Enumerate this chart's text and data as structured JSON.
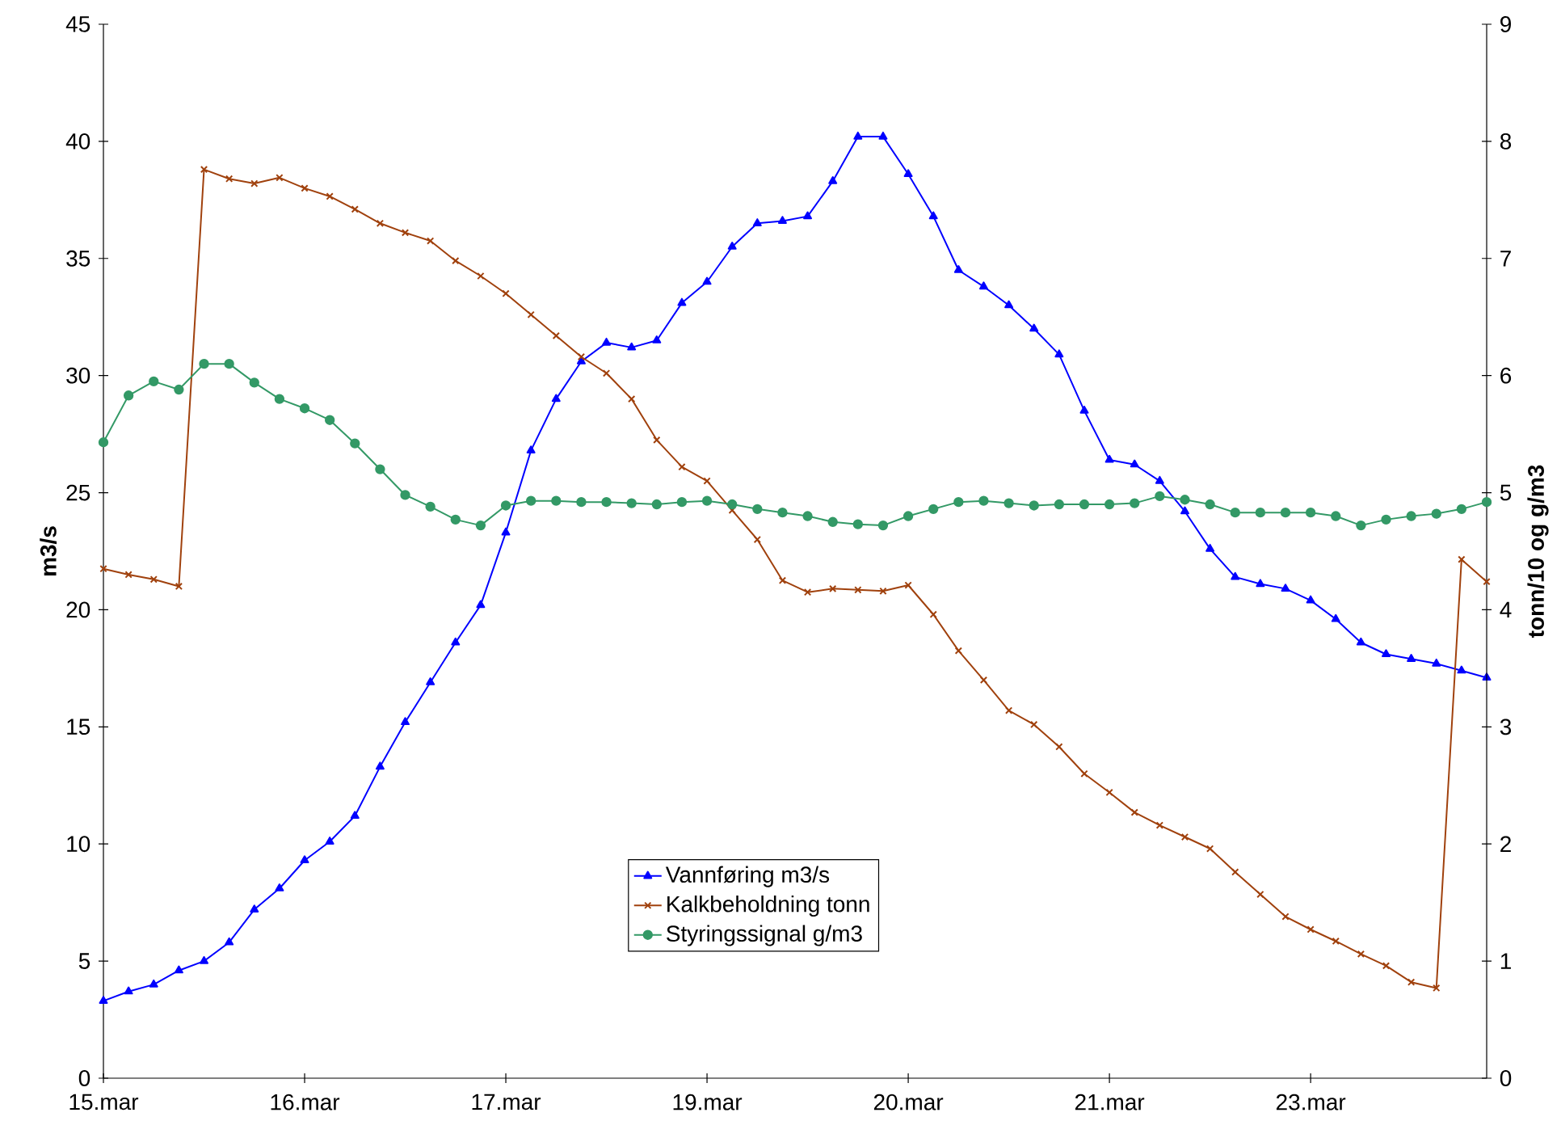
{
  "chart_data": {
    "type": "line",
    "ylabel": "m3/s",
    "y2label": "tonn/10 og g/m3",
    "categories": [
      "15.mar",
      null,
      null,
      null,
      null,
      null,
      null,
      null,
      "16.mar",
      null,
      null,
      null,
      null,
      null,
      null,
      null,
      "17.mar",
      null,
      null,
      null,
      null,
      null,
      null,
      null,
      "19.mar",
      null,
      null,
      null,
      null,
      null,
      null,
      null,
      "20.mar",
      null,
      null,
      null,
      null,
      null,
      null,
      null,
      "21.mar",
      null,
      null,
      null,
      null,
      null,
      null,
      null,
      "23.mar",
      null,
      null,
      null,
      null,
      null,
      null,
      null
    ],
    "ylim": [
      0,
      45
    ],
    "yticks": [
      0,
      5,
      10,
      15,
      20,
      25,
      30,
      35,
      40,
      45
    ],
    "y2lim": [
      0,
      9
    ],
    "y2ticks": [
      0,
      1,
      2,
      3,
      4,
      5,
      6,
      7,
      8,
      9
    ],
    "legend": "bottom",
    "grid": false,
    "series": [
      {
        "name": "Vannføring m3/s",
        "color": "#0000ff",
        "marker": "triangle",
        "values": [
          3.3,
          3.7,
          4.0,
          4.6,
          5.0,
          5.8,
          7.2,
          8.1,
          9.3,
          10.1,
          11.2,
          13.3,
          15.2,
          16.9,
          18.6,
          20.2,
          23.3,
          26.8,
          29.0,
          30.6,
          31.4,
          31.2,
          31.5,
          33.1,
          34.0,
          35.5,
          36.5,
          36.6,
          36.8,
          38.3,
          40.2,
          40.2,
          38.6,
          36.8,
          34.5,
          33.8,
          33.0,
          32.0,
          30.9,
          28.5,
          26.4,
          26.2,
          25.5,
          24.2,
          22.6,
          21.4,
          21.1,
          20.9,
          20.4,
          19.6,
          18.6,
          18.1,
          17.9,
          17.7,
          17.4,
          17.1
        ]
      },
      {
        "name": "Kalkbeholdning tonn",
        "color": "#a0410d",
        "marker": "cross",
        "axis": "y2",
        "values": [
          4.35,
          4.3,
          4.26,
          4.2,
          7.76,
          7.68,
          7.64,
          7.69,
          7.6,
          7.53,
          7.42,
          7.3,
          7.22,
          7.15,
          6.98,
          6.85,
          6.7,
          6.52,
          6.34,
          6.16,
          6.02,
          5.8,
          5.45,
          5.22,
          5.1,
          4.85,
          4.6,
          4.25,
          4.15,
          4.18,
          4.17,
          4.16,
          4.21,
          3.96,
          3.65,
          3.4,
          3.14,
          3.02,
          2.83,
          2.6,
          2.44,
          2.27,
          2.16,
          2.06,
          1.96,
          1.76,
          1.57,
          1.38,
          1.27,
          1.17,
          1.06,
          0.96,
          0.82,
          0.77,
          4.43,
          4.24
        ]
      },
      {
        "name": "Styringssignal g/m3",
        "color": "#339966",
        "marker": "circle",
        "axis": "y2",
        "values": [
          5.43,
          5.83,
          5.95,
          5.88,
          6.1,
          6.1,
          5.94,
          5.8,
          5.72,
          5.62,
          5.42,
          5.2,
          4.98,
          4.88,
          4.77,
          4.72,
          4.89,
          4.93,
          4.93,
          4.92,
          4.92,
          4.91,
          4.9,
          4.92,
          4.93,
          4.9,
          4.86,
          4.83,
          4.8,
          4.75,
          4.73,
          4.72,
          4.8,
          4.86,
          4.92,
          4.93,
          4.91,
          4.89,
          4.9,
          4.9,
          4.9,
          4.91,
          4.97,
          4.94,
          4.9,
          4.83,
          4.83,
          4.83,
          4.83,
          4.8,
          4.72,
          4.77,
          4.8,
          4.82,
          4.86,
          4.92
        ]
      }
    ]
  }
}
